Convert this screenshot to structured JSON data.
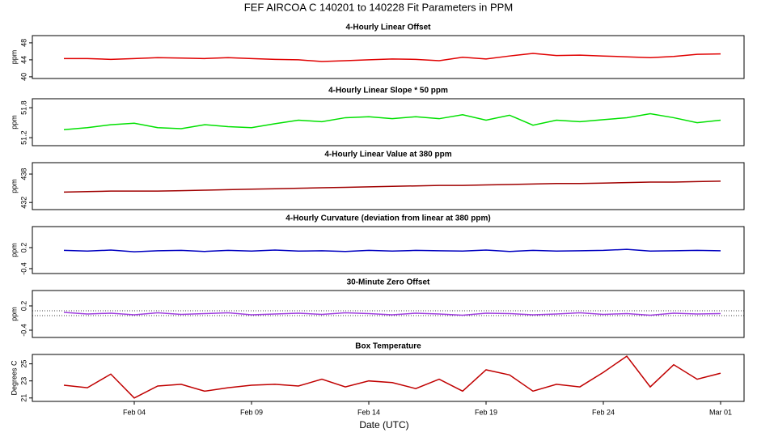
{
  "title": "FEF   AIRCOA C  140201 to 140228   Fit Parameters in PPM",
  "xlabel": "Date (UTC)",
  "x": [
    "Feb 01",
    "Feb 02",
    "Feb 03",
    "Feb 04",
    "Feb 05",
    "Feb 06",
    "Feb 07",
    "Feb 08",
    "Feb 09",
    "Feb 10",
    "Feb 11",
    "Feb 12",
    "Feb 13",
    "Feb 14",
    "Feb 15",
    "Feb 16",
    "Feb 17",
    "Feb 18",
    "Feb 19",
    "Feb 20",
    "Feb 21",
    "Feb 22",
    "Feb 23",
    "Feb 24",
    "Feb 25",
    "Feb 26",
    "Feb 27",
    "Feb 28",
    "Mar 01"
  ],
  "xticks": [
    "Feb 04",
    "Feb 09",
    "Feb 14",
    "Feb 19",
    "Feb 24",
    "Mar 01"
  ],
  "chart_data": [
    {
      "type": "line",
      "title": "4-Hourly Linear Offset",
      "ylabel": "ppm",
      "color": "#e00000",
      "ylim": [
        39.6,
        49.7
      ],
      "yticks": [
        40,
        44,
        48
      ],
      "values": [
        44.3,
        44.3,
        44.1,
        44.3,
        44.5,
        44.4,
        44.3,
        44.5,
        44.3,
        44.1,
        44.0,
        43.6,
        43.8,
        44.0,
        44.2,
        44.1,
        43.8,
        44.6,
        44.2,
        44.9,
        45.5,
        45.0,
        45.1,
        44.9,
        44.7,
        44.5,
        44.8,
        45.3,
        45.4
      ]
    },
    {
      "type": "line",
      "title": "4-Hourly Linear Slope * 50 ppm",
      "ylabel": "ppm",
      "color": "#00e000",
      "ylim": [
        51.04,
        51.98
      ],
      "yticks": [
        51.2,
        51.8
      ],
      "values": [
        51.36,
        51.4,
        51.46,
        51.49,
        51.4,
        51.38,
        51.46,
        51.42,
        51.4,
        51.48,
        51.55,
        51.52,
        51.6,
        51.62,
        51.58,
        51.62,
        51.58,
        51.66,
        51.55,
        51.65,
        51.45,
        51.55,
        51.52,
        51.56,
        51.6,
        51.68,
        51.6,
        51.5,
        51.55
      ]
    },
    {
      "type": "line",
      "title": "4-Hourly Linear Value at 380 ppm",
      "ylabel": "ppm",
      "color": "#a00000",
      "ylim": [
        430.5,
        440.4
      ],
      "yticks": [
        432,
        438
      ],
      "values": [
        434.2,
        434.3,
        434.4,
        434.4,
        434.4,
        434.5,
        434.6,
        434.7,
        434.8,
        434.9,
        435.0,
        435.1,
        435.2,
        435.3,
        435.4,
        435.5,
        435.6,
        435.6,
        435.7,
        435.8,
        435.9,
        436.0,
        436.0,
        436.1,
        436.2,
        436.3,
        436.3,
        436.4,
        436.5
      ]
    },
    {
      "type": "line",
      "title": "4-Hourly Curvature (deviation from linear at 380 ppm)",
      "ylabel": "ppm",
      "color": "#0000c0",
      "ylim": [
        -0.54,
        0.8
      ],
      "yticks": [
        -0.4,
        0.2
      ],
      "values": [
        0.12,
        0.1,
        0.13,
        0.08,
        0.11,
        0.12,
        0.09,
        0.12,
        0.1,
        0.13,
        0.1,
        0.11,
        0.09,
        0.12,
        0.1,
        0.12,
        0.11,
        0.1,
        0.13,
        0.09,
        0.12,
        0.1,
        0.11,
        0.12,
        0.15,
        0.1,
        0.11,
        0.12,
        0.11
      ]
    },
    {
      "type": "line",
      "title": "30-Minute Zero Offset",
      "ylabel": "ppm",
      "color": "#a040e0",
      "ylim": [
        -0.58,
        0.58
      ],
      "yticks": [
        -0.4,
        0.2
      ],
      "reference_lines": [
        0.08,
        -0.04
      ],
      "values": [
        0.04,
        0.0,
        0.02,
        -0.02,
        0.03,
        -0.01,
        0.01,
        0.03,
        -0.02,
        0.0,
        0.02,
        -0.01,
        0.03,
        0.01,
        -0.02,
        0.02,
        0.0,
        -0.03,
        0.02,
        0.01,
        -0.02,
        0.0,
        0.03,
        -0.01,
        0.01,
        -0.03,
        0.02,
        0.0,
        0.01
      ]
    },
    {
      "type": "line",
      "title": "Box Temperature",
      "ylabel": "Degrees C",
      "color": "#c00000",
      "ylim": [
        20.6,
        26.1
      ],
      "yticks": [
        21,
        23,
        25
      ],
      "values": [
        22.5,
        22.2,
        23.8,
        21.0,
        22.4,
        22.6,
        21.8,
        22.2,
        22.5,
        22.6,
        22.4,
        23.2,
        22.3,
        23.0,
        22.8,
        22.1,
        23.2,
        21.8,
        24.3,
        23.7,
        21.8,
        22.6,
        22.3,
        24.0,
        25.9,
        22.3,
        24.9,
        23.2,
        23.9
      ]
    }
  ]
}
